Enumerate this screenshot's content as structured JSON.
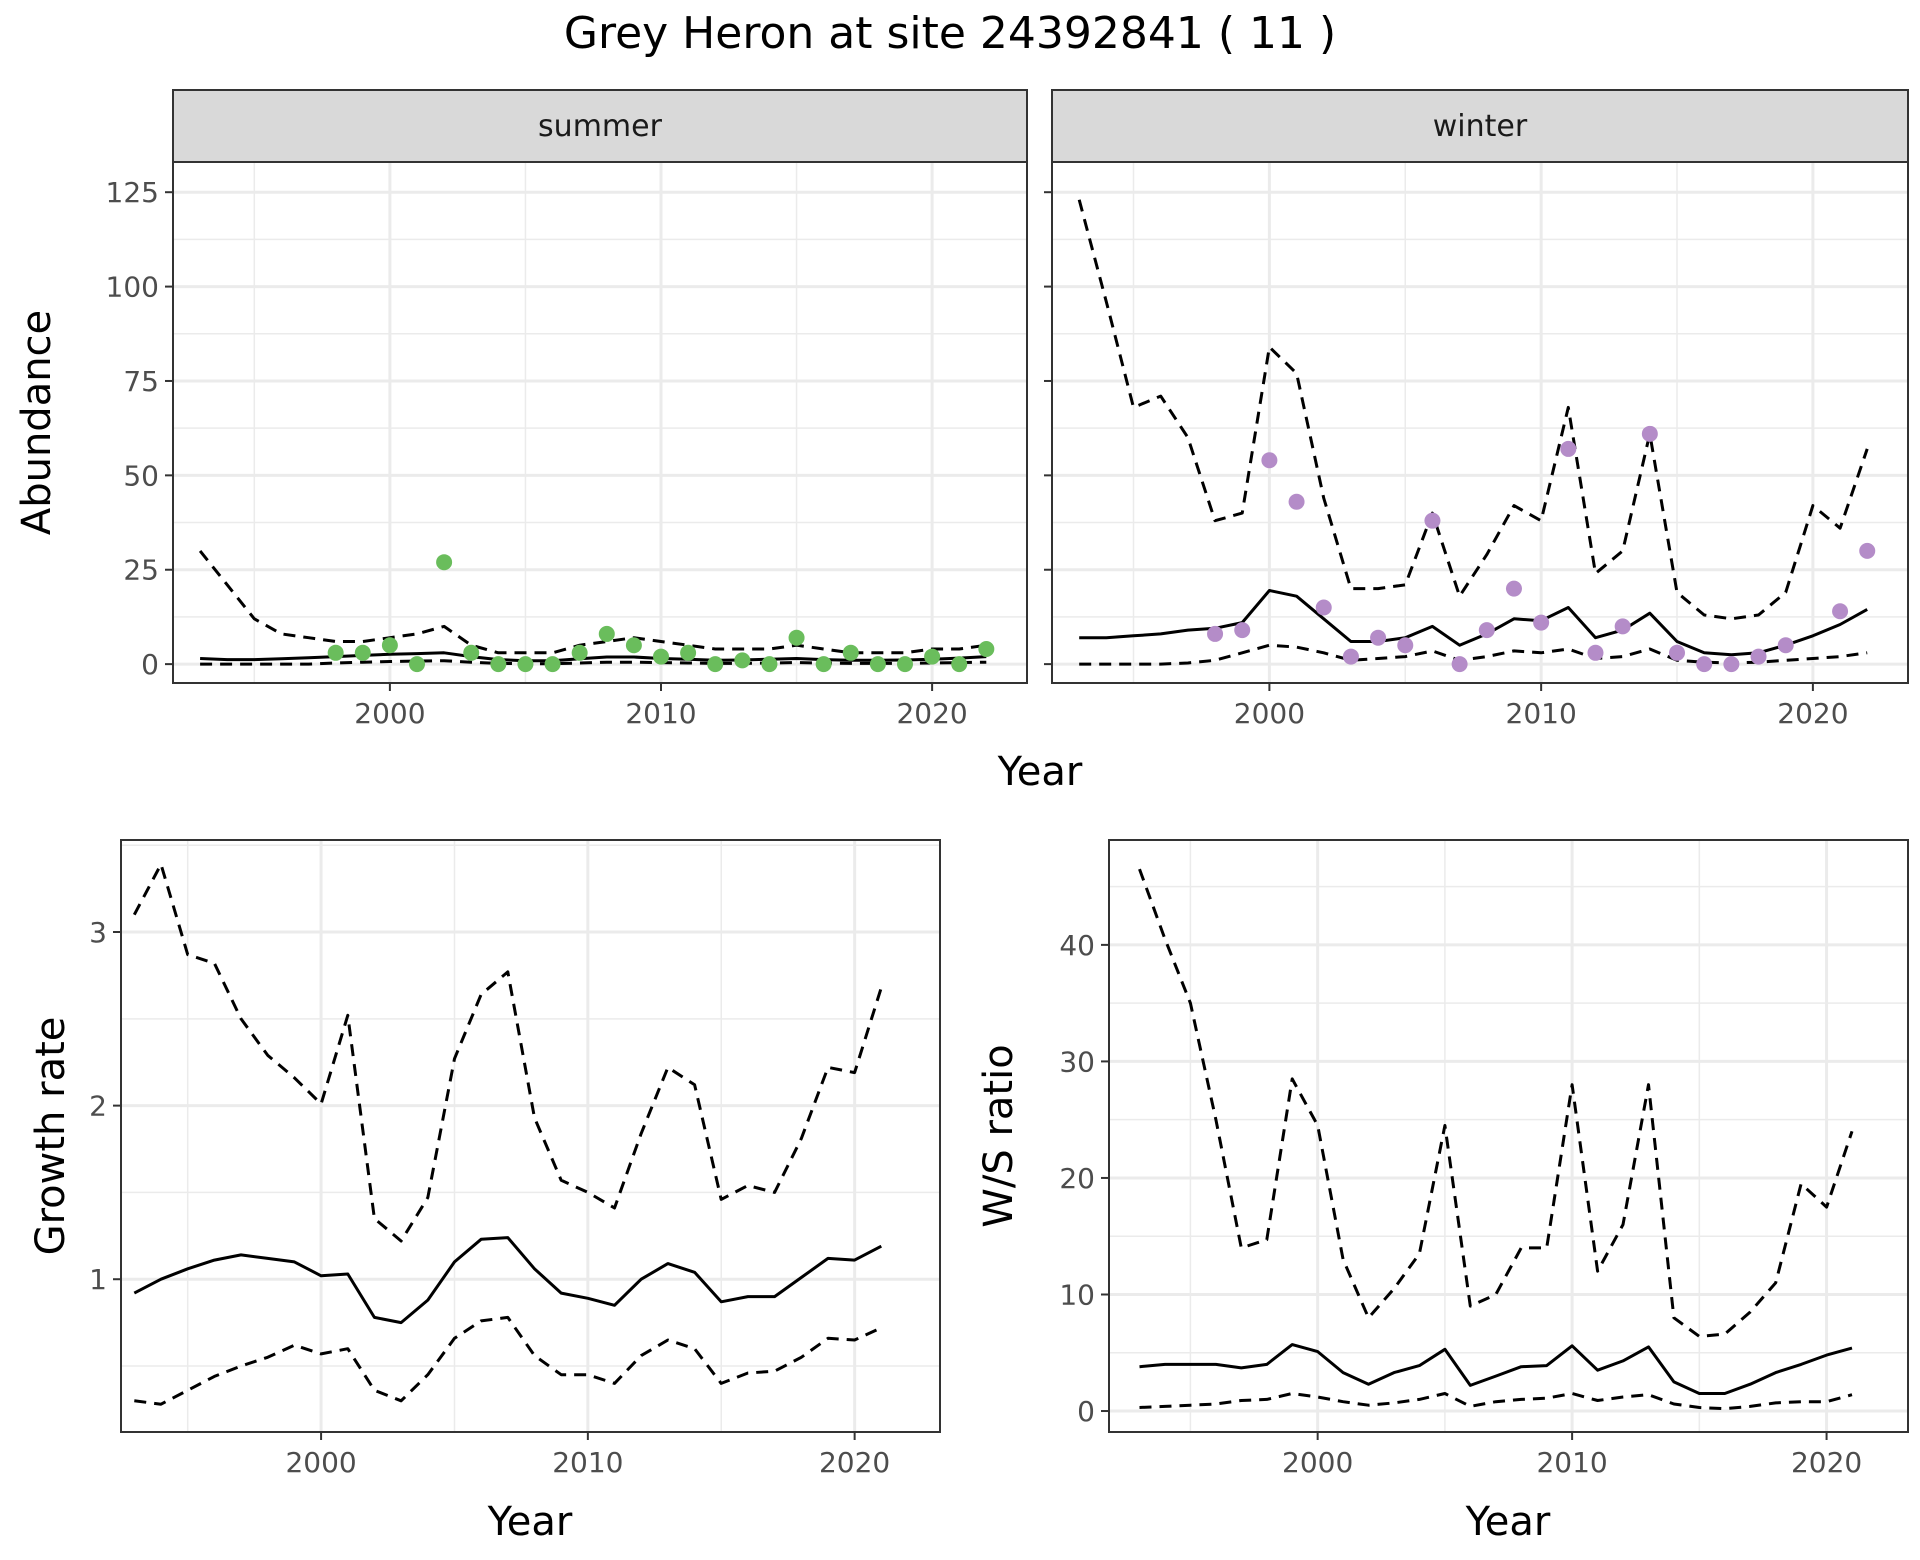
{
  "title": "Grey Heron at site 24392841 ( 11 )",
  "colors": {
    "summer": "#6abd5c",
    "winter": "#b48cc8",
    "line": "#000000",
    "grid": "#ebebeb",
    "strip": "#d9d9d9"
  },
  "chart_data": [
    {
      "id": "summer",
      "type": "line",
      "strip_label": "summer",
      "ylabel": "Abundance",
      "xlabel": "Year",
      "xlim": [
        1992,
        2023.5
      ],
      "ylim": [
        -5,
        133
      ],
      "xticks": [
        2000,
        2010,
        2020
      ],
      "yticks": [
        0,
        25,
        50,
        75,
        100,
        125
      ],
      "x": [
        1993,
        1994,
        1995,
        1996,
        1997,
        1998,
        1999,
        2000,
        2001,
        2002,
        2003,
        2004,
        2005,
        2006,
        2007,
        2008,
        2009,
        2010,
        2011,
        2012,
        2013,
        2014,
        2015,
        2016,
        2017,
        2018,
        2019,
        2020,
        2021,
        2022
      ],
      "series": [
        {
          "style": "solid",
          "values": [
            1.5,
            1.2,
            1.2,
            1.4,
            1.7,
            2.0,
            2.3,
            2.6,
            2.8,
            3.0,
            2.0,
            1.2,
            0.9,
            0.9,
            1.4,
            1.9,
            1.9,
            1.5,
            1.3,
            1.0,
            1.1,
            1.3,
            1.5,
            1.2,
            1.0,
            1.0,
            1.1,
            1.3,
            1.6,
            2.0
          ]
        },
        {
          "style": "dashed",
          "values": [
            30,
            21,
            12,
            8,
            7,
            6,
            6,
            7,
            8,
            10,
            5,
            3,
            3,
            3,
            5,
            6,
            7,
            6,
            5,
            4,
            4,
            4,
            5,
            4,
            3,
            3,
            3,
            4,
            4,
            5
          ]
        },
        {
          "style": "dashed",
          "values": [
            0,
            0,
            0,
            0,
            0,
            0.3,
            0.5,
            0.7,
            0.8,
            0.9,
            0.5,
            0.2,
            0.1,
            0.1,
            0.3,
            0.5,
            0.5,
            0.4,
            0.3,
            0.2,
            0.2,
            0.3,
            0.4,
            0.3,
            0.2,
            0.2,
            0.2,
            0.3,
            0.4,
            0.5
          ]
        }
      ],
      "points": {
        "x": [
          1998,
          1999,
          2000,
          2001,
          2002,
          2003,
          2004,
          2005,
          2006,
          2007,
          2008,
          2009,
          2010,
          2011,
          2012,
          2013,
          2014,
          2015,
          2016,
          2017,
          2018,
          2019,
          2020,
          2021,
          2022
        ],
        "y": [
          3,
          3,
          5,
          0,
          27,
          3,
          0,
          0,
          0,
          3,
          8,
          5,
          2,
          3,
          0,
          1,
          0,
          7,
          0,
          3,
          0,
          0,
          2,
          0,
          4
        ]
      }
    },
    {
      "id": "winter",
      "type": "line",
      "strip_label": "winter",
      "xlabel": "Year",
      "xlim": [
        1992,
        2023.5
      ],
      "ylim": [
        -5,
        133
      ],
      "xticks": [
        2000,
        2010,
        2020
      ],
      "yticks": [
        0,
        25,
        50,
        75,
        100,
        125
      ],
      "x": [
        1993,
        1994,
        1995,
        1996,
        1997,
        1998,
        1999,
        2000,
        2001,
        2002,
        2003,
        2004,
        2005,
        2006,
        2007,
        2008,
        2009,
        2010,
        2011,
        2012,
        2013,
        2014,
        2015,
        2016,
        2017,
        2018,
        2019,
        2020,
        2021,
        2022
      ],
      "series": [
        {
          "style": "solid",
          "values": [
            7,
            7,
            7.5,
            8,
            9,
            9.5,
            11,
            19.5,
            18,
            12,
            6,
            6,
            7,
            10,
            5,
            8,
            12,
            11.5,
            15,
            7,
            9,
            13.5,
            6,
            3,
            2.5,
            3,
            5,
            7.5,
            10.5,
            14.5
          ]
        },
        {
          "style": "dashed",
          "values": [
            123,
            96,
            68,
            71,
            60,
            38,
            40,
            84,
            77,
            44,
            20,
            20,
            21,
            40,
            18,
            29,
            42,
            38,
            68,
            24,
            30,
            61,
            19,
            13,
            12,
            13,
            19,
            42,
            36,
            57
          ]
        },
        {
          "style": "dashed",
          "values": [
            0,
            0,
            0,
            0,
            0.3,
            1,
            3,
            5,
            4.5,
            3,
            1,
            1.5,
            2,
            3.5,
            1,
            2,
            3.5,
            3,
            4,
            1.5,
            2,
            4,
            1,
            0.5,
            0.3,
            0.5,
            1,
            1.5,
            2,
            3
          ]
        }
      ],
      "points": {
        "x": [
          1998,
          1999,
          2000,
          2001,
          2002,
          2003,
          2004,
          2005,
          2006,
          2007,
          2008,
          2009,
          2010,
          2011,
          2012,
          2013,
          2014,
          2015,
          2016,
          2017,
          2018,
          2019,
          2021,
          2022
        ],
        "y": [
          8,
          9,
          54,
          43,
          15,
          2,
          7,
          5,
          38,
          0,
          9,
          20,
          11,
          57,
          3,
          10,
          61,
          3,
          0,
          0,
          2,
          5,
          14,
          30
        ]
      }
    },
    {
      "id": "growth",
      "type": "line",
      "ylabel": "Growth rate",
      "xlabel": "Year",
      "xlim": [
        1992.5,
        2023.2
      ],
      "ylim": [
        0.12,
        3.53
      ],
      "xticks": [
        2000,
        2010,
        2020
      ],
      "yticks": [
        1,
        2,
        3
      ],
      "x": [
        1993,
        1994,
        1995,
        1996,
        1997,
        1998,
        1999,
        2000,
        2001,
        2002,
        2003,
        2004,
        2005,
        2006,
        2007,
        2008,
        2009,
        2010,
        2011,
        2012,
        2013,
        2014,
        2015,
        2016,
        2017,
        2018,
        2019,
        2020,
        2021
      ],
      "series": [
        {
          "style": "solid",
          "values": [
            0.92,
            1.0,
            1.06,
            1.11,
            1.14,
            1.12,
            1.1,
            1.02,
            1.03,
            0.78,
            0.75,
            0.88,
            1.1,
            1.23,
            1.24,
            1.06,
            0.92,
            0.89,
            0.85,
            1.0,
            1.09,
            1.04,
            0.87,
            0.9,
            0.9,
            1.01,
            1.12,
            1.11,
            1.19
          ]
        },
        {
          "style": "dashed",
          "values": [
            3.1,
            3.39,
            2.87,
            2.82,
            2.5,
            2.29,
            2.16,
            2.01,
            2.52,
            1.35,
            1.22,
            1.47,
            2.27,
            2.64,
            2.77,
            1.93,
            1.57,
            1.5,
            1.41,
            1.84,
            2.22,
            2.12,
            1.46,
            1.54,
            1.5,
            1.81,
            2.22,
            2.19,
            2.68
          ]
        },
        {
          "style": "dashed",
          "values": [
            0.3,
            0.28,
            0.36,
            0.44,
            0.5,
            0.55,
            0.62,
            0.57,
            0.6,
            0.36,
            0.3,
            0.45,
            0.66,
            0.76,
            0.78,
            0.56,
            0.45,
            0.45,
            0.4,
            0.56,
            0.65,
            0.6,
            0.4,
            0.46,
            0.47,
            0.55,
            0.66,
            0.65,
            0.72
          ]
        }
      ]
    },
    {
      "id": "ratio",
      "type": "line",
      "ylabel": "W/S ratio",
      "xlabel": "Year",
      "xlim": [
        1991.8,
        2023.2
      ],
      "ylim": [
        -1.8,
        49
      ],
      "xticks": [
        2000,
        2010,
        2020
      ],
      "yticks": [
        0,
        10,
        20,
        30,
        40
      ],
      "x": [
        1993,
        1994,
        1995,
        1996,
        1997,
        1998,
        1999,
        2000,
        2001,
        2002,
        2003,
        2004,
        2005,
        2006,
        2007,
        2008,
        2009,
        2010,
        2011,
        2012,
        2013,
        2014,
        2015,
        2016,
        2017,
        2018,
        2019,
        2020,
        2021
      ],
      "series": [
        {
          "style": "solid",
          "values": [
            3.8,
            4.0,
            4.0,
            4.0,
            3.7,
            4.0,
            5.7,
            5.1,
            3.3,
            2.3,
            3.3,
            3.9,
            5.3,
            2.2,
            3.0,
            3.8,
            3.9,
            5.6,
            3.5,
            4.3,
            5.5,
            2.5,
            1.5,
            1.5,
            2.3,
            3.3,
            4.0,
            4.8,
            5.4
          ]
        },
        {
          "style": "dashed",
          "values": [
            46.5,
            40.5,
            35,
            25,
            14,
            14.7,
            28.5,
            24.5,
            13,
            8,
            10.5,
            13.5,
            24.5,
            9,
            10,
            14,
            14,
            28,
            12,
            16,
            28,
            8,
            6.4,
            6.6,
            8.5,
            11,
            19.5,
            17.5,
            24
          ]
        },
        {
          "style": "dashed",
          "values": [
            0.3,
            0.4,
            0.5,
            0.6,
            0.9,
            1.0,
            1.5,
            1.2,
            0.8,
            0.5,
            0.7,
            1.0,
            1.5,
            0.4,
            0.8,
            1.0,
            1.1,
            1.5,
            0.9,
            1.2,
            1.4,
            0.6,
            0.3,
            0.2,
            0.4,
            0.7,
            0.8,
            0.8,
            1.4
          ]
        }
      ]
    }
  ]
}
